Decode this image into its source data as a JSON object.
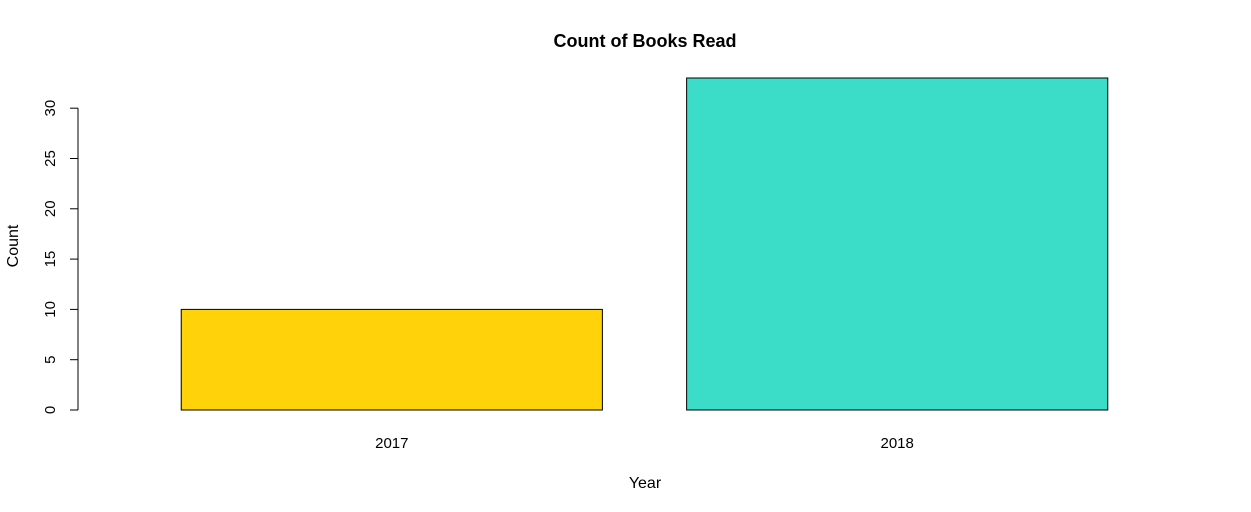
{
  "chart_data": {
    "type": "bar",
    "title": "Count of Books Read",
    "xlabel": "Year",
    "ylabel": "Count",
    "categories": [
      "2017",
      "2018"
    ],
    "values": [
      10,
      33
    ],
    "colors": [
      "#FFD20A",
      "#3BDCC8"
    ],
    "bar_border_color": "#000000",
    "ylim": [
      0,
      33
    ],
    "yticks": [
      "0",
      "5",
      "10",
      "15",
      "20",
      "25",
      "30"
    ],
    "ytick_values": [
      0,
      5,
      10,
      15,
      20,
      25,
      30
    ],
    "grid": false,
    "legend": "none"
  }
}
